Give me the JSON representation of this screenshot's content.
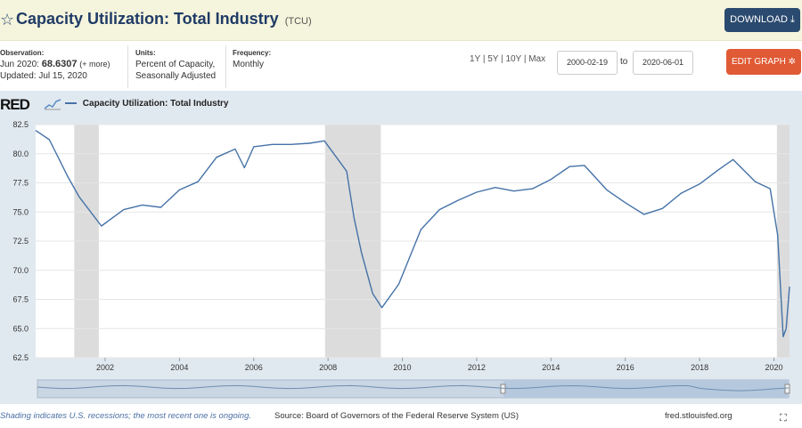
{
  "header": {
    "title": "Capacity Utilization: Total Industry",
    "series_code": "(TCU)",
    "download_label": "DOWNLOAD"
  },
  "meta": {
    "observation_label": "Observation:",
    "observation_period": "Jun 2020:",
    "observation_value": "68.6307",
    "observation_more": "(+ more)",
    "updated": "Updated: Jul 15, 2020",
    "units_label": "Units:",
    "units_line1": "Percent of Capacity,",
    "units_line2": "Seasonally Adjusted",
    "frequency_label": "Frequency:",
    "frequency_value": "Monthly"
  },
  "controls": {
    "periods": [
      "1Y",
      "5Y",
      "10Y",
      "Max"
    ],
    "start_date": "2000-02-19",
    "to_label": "to",
    "end_date": "2020-06-01",
    "edit_label": "EDIT GRAPH"
  },
  "logo_text": "RED",
  "footer": {
    "note": "Shading indicates U.S. recessions; the most recent one is ongoing.",
    "source": "Source: Board of Governors of the Federal Reserve System (US)",
    "site": "fred.stlouisfed.org"
  },
  "colors": {
    "series": "#4572a7",
    "recession": "#dcdcdc",
    "plot_bg": "#ffffff",
    "panel_bg": "#e1e9f0"
  },
  "chart_data": {
    "type": "line",
    "series": [
      {
        "name": "Capacity Utilization: Total Industry",
        "x": [
          2000.13,
          2000.5,
          2001.0,
          2001.3,
          2001.9,
          2002.5,
          2003.0,
          2003.5,
          2004.0,
          2004.5,
          2005.0,
          2005.5,
          2005.75,
          2006.0,
          2006.5,
          2007.0,
          2007.5,
          2007.9,
          2008.5,
          2008.7,
          2008.9,
          2009.2,
          2009.45,
          2009.9,
          2010.5,
          2011.0,
          2011.5,
          2012.0,
          2012.5,
          2013.0,
          2013.5,
          2014.0,
          2014.5,
          2014.9,
          2015.5,
          2016.0,
          2016.5,
          2017.0,
          2017.5,
          2018.0,
          2018.5,
          2018.9,
          2019.5,
          2019.9,
          2020.1,
          2020.25,
          2020.33,
          2020.42
        ],
        "values": [
          82.0,
          81.2,
          78.0,
          76.3,
          73.8,
          75.2,
          75.6,
          75.4,
          76.9,
          77.6,
          79.7,
          80.4,
          78.8,
          80.6,
          80.8,
          80.8,
          80.9,
          81.1,
          78.5,
          74.5,
          71.5,
          68.0,
          66.8,
          68.8,
          73.5,
          75.2,
          76.0,
          76.7,
          77.1,
          76.8,
          77.0,
          77.8,
          78.9,
          79.0,
          76.9,
          75.8,
          74.8,
          75.3,
          76.6,
          77.4,
          78.6,
          79.5,
          77.6,
          77.0,
          73.0,
          64.3,
          65.0,
          68.6
        ]
      }
    ],
    "recessions": [
      [
        2001.17,
        2001.83
      ],
      [
        2007.92,
        2009.42
      ],
      [
        2020.08,
        2020.42
      ]
    ],
    "xlim": [
      2000.13,
      2020.42
    ],
    "ylim": [
      62.5,
      82.5
    ],
    "x_ticks": [
      "2002",
      "2004",
      "2006",
      "2008",
      "2010",
      "2012",
      "2014",
      "2016",
      "2018",
      "2020"
    ],
    "x_tick_values": [
      2002,
      2004,
      2006,
      2008,
      2010,
      2012,
      2014,
      2016,
      2018,
      2020
    ],
    "y_ticks": [
      "62.5",
      "65.0",
      "67.5",
      "70.0",
      "72.5",
      "75.0",
      "77.5",
      "80.0",
      "82.5"
    ],
    "y_tick_values": [
      62.5,
      65.0,
      67.5,
      70.0,
      72.5,
      75.0,
      77.5,
      80.0,
      82.5
    ],
    "grid": true,
    "legend": "top-left"
  }
}
